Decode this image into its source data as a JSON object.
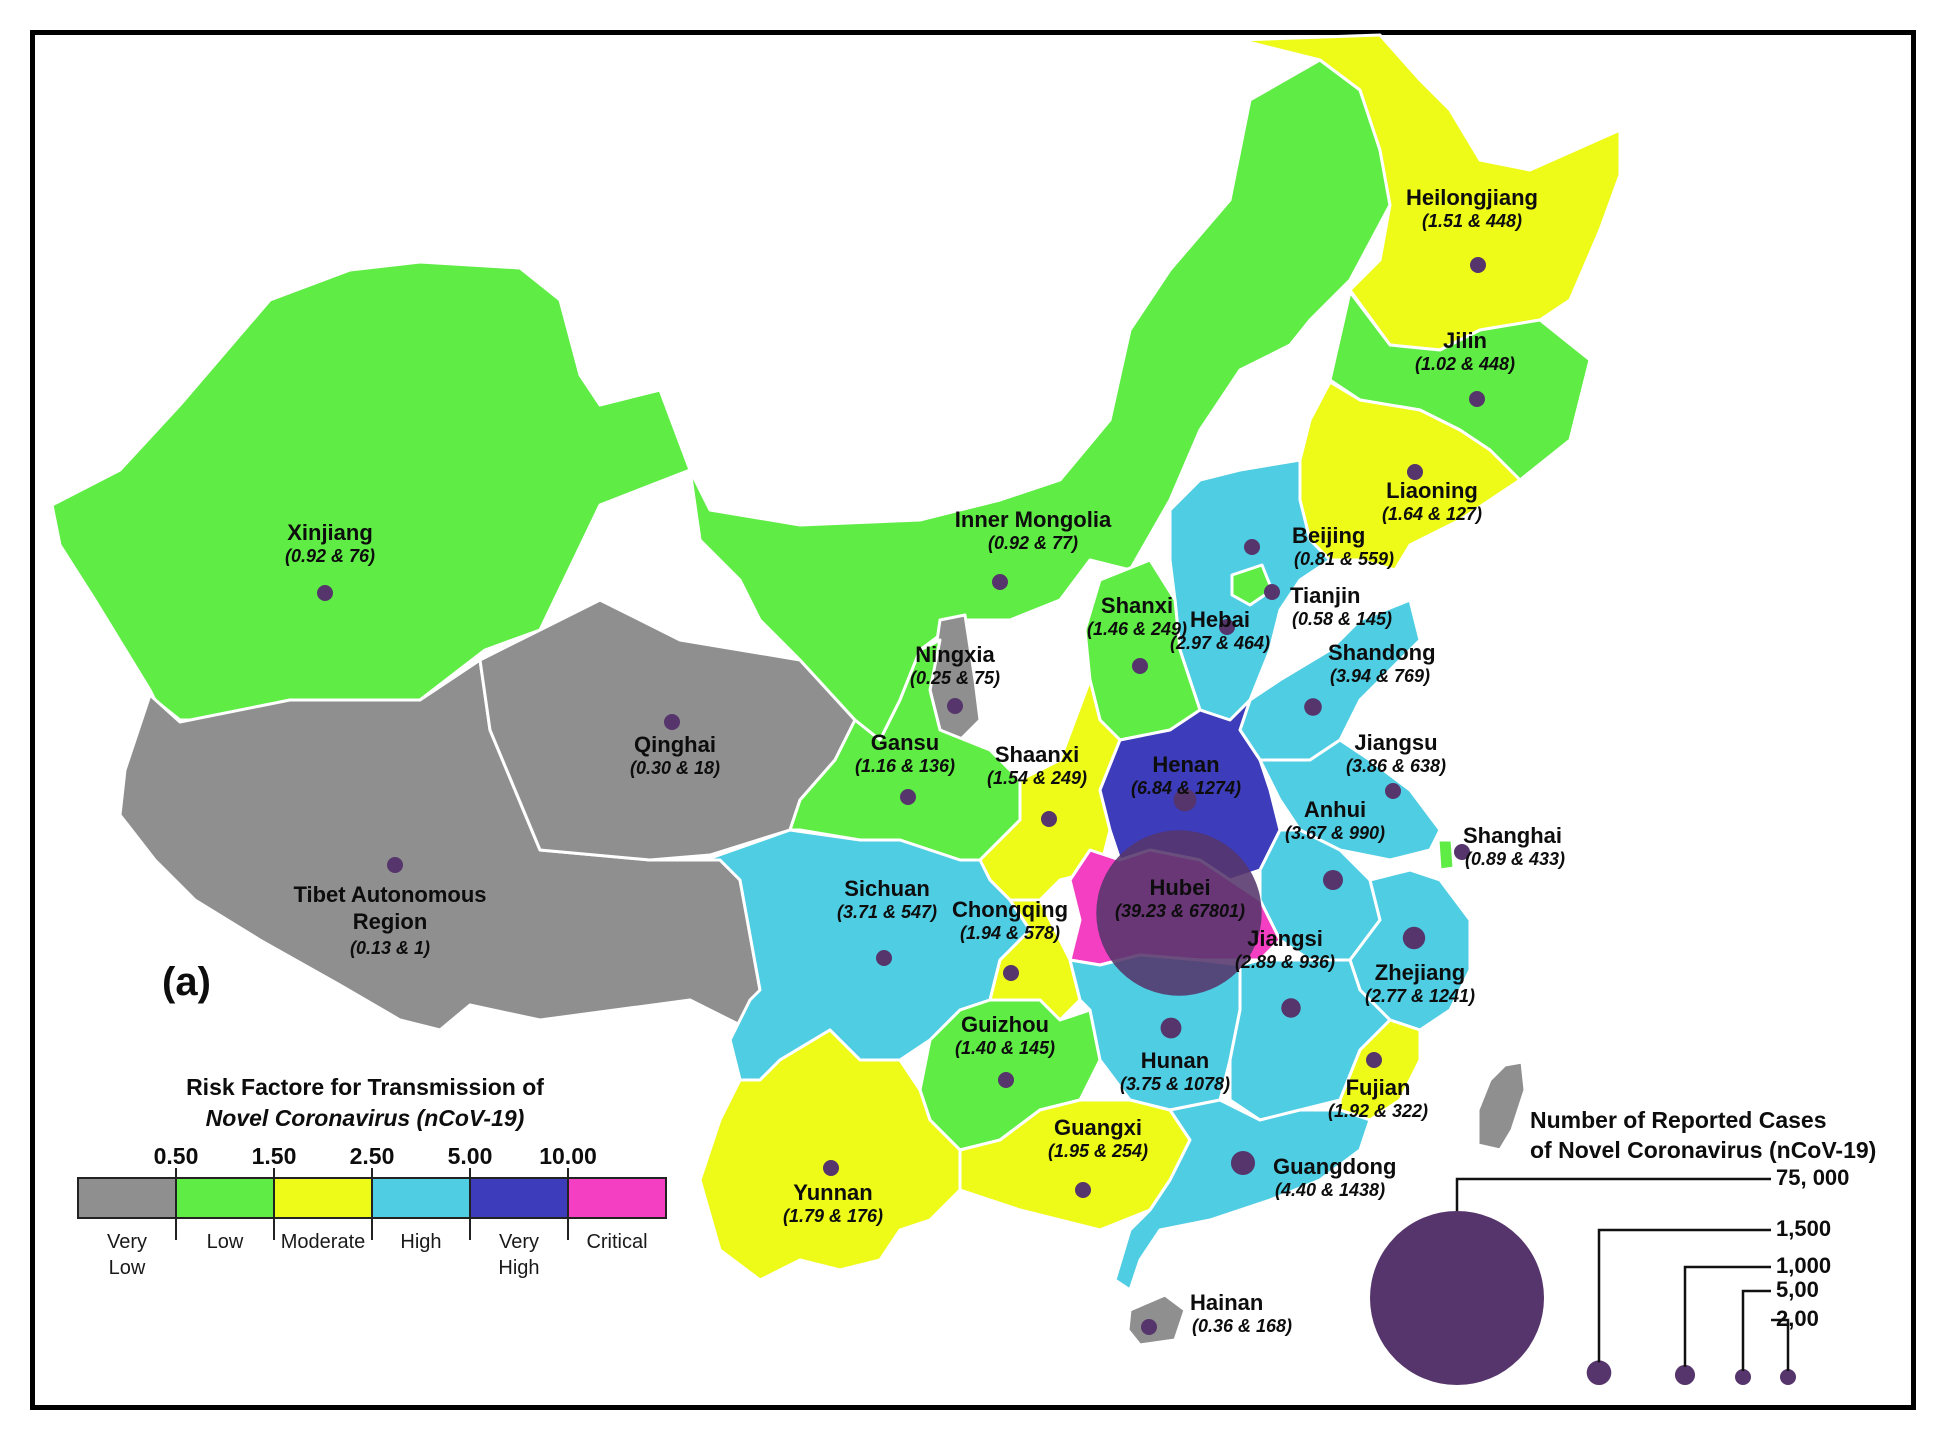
{
  "panel_label": "(a)",
  "colors": {
    "very_low": "#8f8f8f",
    "low": "#5fec45",
    "moderate": "#eefa18",
    "high": "#4fcde3",
    "very_high": "#3d3cba",
    "critical": "#f43fc3",
    "bubble": "#55356b",
    "taiwan": "#8f8f8f"
  },
  "provinces": [
    {
      "name": "Xinjiang",
      "values": "(0.92 & 76)",
      "level": "low",
      "cases": 76
    },
    {
      "name": "Tibet Autonomous",
      "name2": "Region",
      "values": "(0.13 & 1)",
      "level": "very_low",
      "cases": 1
    },
    {
      "name": "Qinghai",
      "values": "(0.30 & 18)",
      "level": "very_low",
      "cases": 18
    },
    {
      "name": "Gansu",
      "values": "(1.16 & 136)",
      "level": "low",
      "cases": 136
    },
    {
      "name": "Inner Mongolia",
      "values": "(0.92 & 77)",
      "level": "low",
      "cases": 77
    },
    {
      "name": "Ningxia",
      "values": "(0.25 & 75)",
      "level": "very_low",
      "cases": 75
    },
    {
      "name": "Heilongjiang",
      "values": "(1.51 & 448)",
      "level": "moderate",
      "cases": 448
    },
    {
      "name": "Jilin",
      "values": "(1.02 & 448)",
      "level": "low",
      "cases": 448
    },
    {
      "name": "Liaoning",
      "values": "(1.64 & 127)",
      "level": "moderate",
      "cases": 127
    },
    {
      "name": "Beijing",
      "values": "(0.81 & 559)",
      "level": "low",
      "cases": 559
    },
    {
      "name": "Tianjin",
      "values": "(0.58 & 145)",
      "level": "low",
      "cases": 145
    },
    {
      "name": "Hebai",
      "values": "(2.97 & 464)",
      "level": "high",
      "cases": 464
    },
    {
      "name": "Shanxi",
      "values": "(1.46 & 249)",
      "level": "low",
      "cases": 249
    },
    {
      "name": "Shandong",
      "values": "(3.94 & 769)",
      "level": "high",
      "cases": 769
    },
    {
      "name": "Shaanxi",
      "values": "(1.54 & 249)",
      "level": "moderate",
      "cases": 249
    },
    {
      "name": "Henan",
      "values": "(6.84 & 1274)",
      "level": "very_high",
      "cases": 1274
    },
    {
      "name": "Jiangsu",
      "values": "(3.86 & 638)",
      "level": "high",
      "cases": 638
    },
    {
      "name": "Shanghai",
      "values": "(0.89 & 433)",
      "level": "low",
      "cases": 433
    },
    {
      "name": "Anhui",
      "values": "(3.67 & 990)",
      "level": "high",
      "cases": 990
    },
    {
      "name": "Hubei",
      "values": "(39.23 & 67801)",
      "level": "critical",
      "cases": 67801
    },
    {
      "name": "Sichuan",
      "values": "(3.71 & 547)",
      "level": "high",
      "cases": 547
    },
    {
      "name": "Chongqing",
      "values": "(1.94 & 578)",
      "level": "moderate",
      "cases": 578
    },
    {
      "name": "Jiangsi",
      "values": "(2.89 & 936)",
      "level": "high",
      "cases": 936
    },
    {
      "name": "Zhejiang",
      "values": "(2.77 & 1241)",
      "level": "high",
      "cases": 1241
    },
    {
      "name": "Guizhou",
      "values": "(1.40 & 145)",
      "level": "low",
      "cases": 145
    },
    {
      "name": "Hunan",
      "values": "(3.75 & 1078)",
      "level": "high",
      "cases": 1078
    },
    {
      "name": "Fujian",
      "values": "(1.92 & 322)",
      "level": "moderate",
      "cases": 322
    },
    {
      "name": "Guangxi",
      "values": "(1.95 & 254)",
      "level": "moderate",
      "cases": 254
    },
    {
      "name": "Yunnan",
      "values": "(1.79 & 176)",
      "level": "moderate",
      "cases": 176
    },
    {
      "name": "Guangdong",
      "values": "(4.40 & 1438)",
      "level": "high",
      "cases": 1438
    },
    {
      "name": "Hainan",
      "values": "(0.36 & 168)",
      "level": "very_low",
      "cases": 168
    }
  ],
  "risk_legend": {
    "title_line1": "Risk Factore for Transmission of",
    "title_line2": "Novel Coronavirus (nCoV-19)",
    "ticks": [
      "0.50",
      "1.50",
      "2.50",
      "5.00",
      "10.00"
    ],
    "categories": [
      {
        "label": "Very",
        "label2": "Low",
        "level": "very_low"
      },
      {
        "label": "Low",
        "label2": "",
        "level": "low"
      },
      {
        "label": "Moderate",
        "label2": "",
        "level": "moderate"
      },
      {
        "label": "High",
        "label2": "",
        "level": "high"
      },
      {
        "label": "Very",
        "label2": "High",
        "level": "very_high"
      },
      {
        "label": "Critical",
        "label2": "",
        "level": "critical"
      }
    ]
  },
  "size_legend": {
    "title_line1": "Number of Reported Cases",
    "title_line2": "of Novel Coronavirus (nCoV-19)",
    "entries": [
      {
        "label": "75, 000",
        "value": 75000
      },
      {
        "label": "1,500",
        "value": 1500
      },
      {
        "label": "1,000",
        "value": 1000
      },
      {
        "label": "5,00",
        "value": 500
      },
      {
        "label": "2,00",
        "value": 200
      }
    ]
  }
}
